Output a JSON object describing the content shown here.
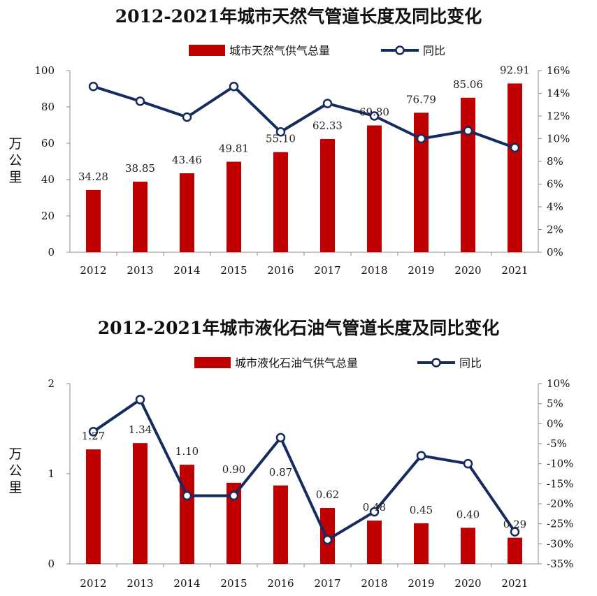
{
  "chart_data": [
    {
      "type": "bar",
      "title": "2012-2021年城市天然气管道长度及同比变化",
      "categories": [
        "2012",
        "2013",
        "2014",
        "2015",
        "2016",
        "2017",
        "2018",
        "2019",
        "2020",
        "2021"
      ],
      "series": [
        {
          "name": "城市天然气供气总量",
          "type": "bar",
          "axis": "left",
          "values": [
            34.28,
            38.85,
            43.46,
            49.81,
            55.1,
            62.33,
            69.8,
            76.79,
            85.06,
            92.91
          ],
          "labels": [
            "34.28",
            "38.85",
            "43.46",
            "49.81",
            "55.10",
            "62.33",
            "69.80",
            "76.79",
            "85.06",
            "92.91"
          ]
        },
        {
          "name": "同比",
          "type": "line",
          "axis": "right",
          "values": [
            14.6,
            13.3,
            11.9,
            14.6,
            10.6,
            13.1,
            12.0,
            10.0,
            10.7,
            9.2
          ]
        }
      ],
      "ylabel": "万公里",
      "ylim": [
        0,
        100
      ],
      "yticks": [
        "0",
        "20",
        "40",
        "60",
        "80",
        "100"
      ],
      "y2lim": [
        0,
        16
      ],
      "y2ticks": [
        "0%",
        "2%",
        "4%",
        "6%",
        "8%",
        "10%",
        "12%",
        "14%",
        "16%"
      ],
      "colors": {
        "bar": "#c00000",
        "line": "#162b5e"
      }
    },
    {
      "type": "bar",
      "title": "2012-2021年城市液化石油气管道长度及同比变化",
      "categories": [
        "2012",
        "2013",
        "2014",
        "2015",
        "2016",
        "2017",
        "2018",
        "2019",
        "2020",
        "2021"
      ],
      "series": [
        {
          "name": "城市液化石油气供气总量",
          "type": "bar",
          "axis": "left",
          "values": [
            1.27,
            1.34,
            1.1,
            0.9,
            0.87,
            0.62,
            0.48,
            0.45,
            0.4,
            0.29
          ],
          "labels": [
            "1.27",
            "1.34",
            "1.10",
            "0.90",
            "0.87",
            "0.62",
            "0.48",
            "0.45",
            "0.40",
            "0.29"
          ]
        },
        {
          "name": "同比",
          "type": "line",
          "axis": "right",
          "values": [
            -2,
            6,
            -18,
            -18,
            -3.5,
            -29,
            -22,
            -8,
            -10,
            -27
          ]
        }
      ],
      "ylabel": "万公里",
      "ylim": [
        0,
        2
      ],
      "yticks": [
        "0",
        "1",
        "2"
      ],
      "y2lim": [
        -35,
        10
      ],
      "y2ticks": [
        "-35%",
        "-30%",
        "-25%",
        "-20%",
        "-15%",
        "-10%",
        "-5%",
        "0%",
        "5%",
        "10%"
      ],
      "colors": {
        "bar": "#c00000",
        "line": "#162b5e"
      }
    }
  ]
}
